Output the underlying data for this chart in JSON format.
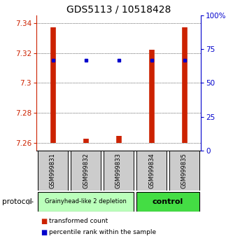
{
  "title": "GDS5113 / 10518428",
  "samples": [
    "GSM999831",
    "GSM999832",
    "GSM999833",
    "GSM999834",
    "GSM999835"
  ],
  "bar_low": [
    7.26,
    7.26,
    7.26,
    7.26,
    7.26
  ],
  "bar_high": [
    7.337,
    7.263,
    7.265,
    7.322,
    7.337
  ],
  "dot_y": [
    7.315,
    7.315,
    7.315,
    7.315,
    7.315
  ],
  "ylim": [
    7.255,
    7.345
  ],
  "yticks": [
    7.26,
    7.28,
    7.3,
    7.32,
    7.34
  ],
  "ytick_labels": [
    "7.26",
    "7.28",
    "7.3",
    "7.32",
    "7.34"
  ],
  "y2ticks": [
    0,
    25,
    50,
    75,
    100
  ],
  "y2tick_labels": [
    "0",
    "25",
    "50",
    "75",
    "100%"
  ],
  "bar_color": "#cc2200",
  "dot_color": "#0000cc",
  "group1_color": "#bbffbb",
  "group2_color": "#44dd44",
  "group1_label": "Grainyhead-like 2 depletion",
  "group2_label": "control",
  "group1_indices": [
    0,
    1,
    2
  ],
  "group2_indices": [
    3,
    4
  ],
  "protocol_label": "protocol",
  "legend_bar_label": "transformed count",
  "legend_dot_label": "percentile rank within the sample",
  "bg_color": "#cccccc",
  "title_fontsize": 10,
  "tick_fontsize": 7.5,
  "sample_fontsize": 6.0
}
